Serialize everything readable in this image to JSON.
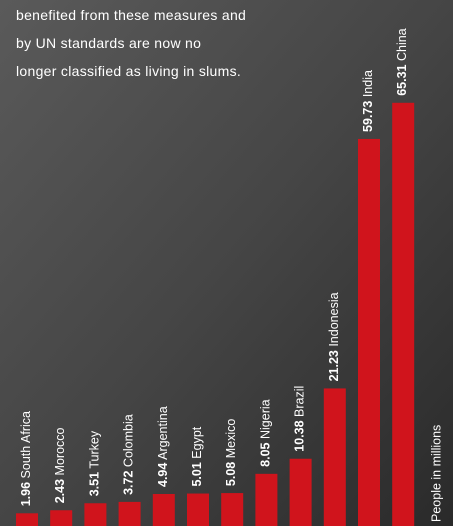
{
  "intro_lines": [
    "benefited from these measures and",
    "by UN standards are now no",
    "longer classified as living in slums."
  ],
  "chart_data": {
    "type": "bar",
    "y_label": "People in millions",
    "color": "#d0141c",
    "categories": [
      "South Africa",
      "Morocco",
      "Turkey",
      "Colombia",
      "Argentina",
      "Egypt",
      "Mexico",
      "Nigeria",
      "Brazil",
      "Indonesia",
      "India",
      "China"
    ],
    "values": [
      1.96,
      2.43,
      3.51,
      3.72,
      4.94,
      5.01,
      5.08,
      8.05,
      10.38,
      21.23,
      59.73,
      65.31
    ]
  }
}
